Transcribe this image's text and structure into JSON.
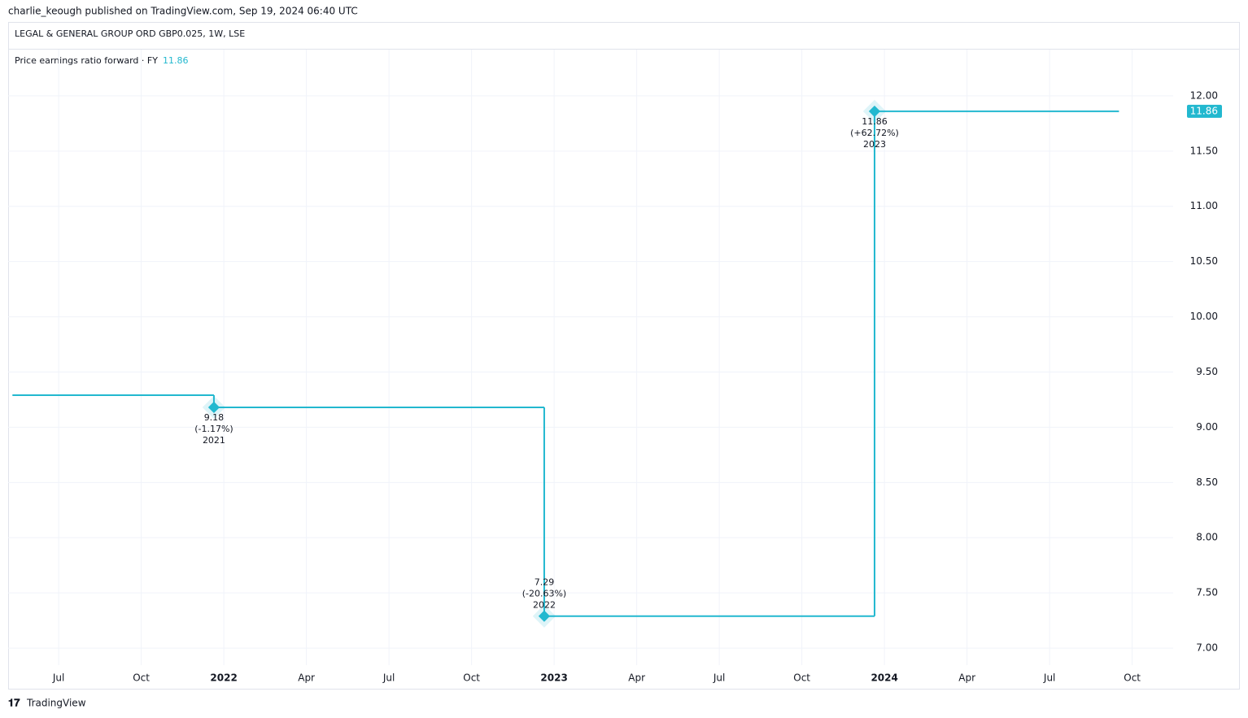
{
  "header": {
    "published": "charlie_keough published on TradingView.com, Sep 19, 2024 06:40 UTC",
    "brand": "TradingView"
  },
  "chart_data": {
    "type": "line",
    "title": "LEGAL & GENERAL GROUP ORD GBP0.025, 1W, LSE",
    "step": "post",
    "series": [
      {
        "name": "Price earnings ratio forward · FY",
        "color": "#22b8cf",
        "x": [
          2021.36,
          2021.97,
          2022.97,
          2023.97
        ],
        "values": [
          9.29,
          9.18,
          7.29,
          11.86
        ],
        "x_end": 2024.71
      }
    ],
    "legend_value": 11.86,
    "last_value": 11.86,
    "annotations": [
      {
        "x": 2021.97,
        "value": 9.18,
        "change": "(-1.17%)",
        "period": "2021",
        "position": "below"
      },
      {
        "x": 2022.97,
        "value": 7.29,
        "change": "(-20.63%)",
        "period": "2022",
        "position": "above"
      },
      {
        "x": 2023.97,
        "value": 11.86,
        "change": "(+62.72%)",
        "period": "2023",
        "position": "below"
      }
    ],
    "xlim": [
      2021.347,
      2024.874
    ],
    "xticks": [
      {
        "value": 2021.5,
        "label": "Jul"
      },
      {
        "value": 2021.75,
        "label": "Oct"
      },
      2022,
      {
        "value": 2022.25,
        "label": "Apr"
      },
      {
        "value": 2022.5,
        "label": "Jul"
      },
      {
        "value": 2022.75,
        "label": "Oct"
      },
      2023,
      {
        "value": 2023.25,
        "label": "Apr"
      },
      {
        "value": 2023.5,
        "label": "Jul"
      },
      {
        "value": 2023.75,
        "label": "Oct"
      },
      2024,
      {
        "value": 2024.25,
        "label": "Apr"
      },
      {
        "value": 2024.5,
        "label": "Jul"
      },
      {
        "value": 2024.75,
        "label": "Oct"
      }
    ],
    "ylim": [
      6.846,
      12.419
    ],
    "yticks": [
      {
        "value": 7,
        "label": "7.00"
      },
      {
        "value": 7.5,
        "label": "7.50"
      },
      {
        "value": 8,
        "label": "8.00"
      },
      {
        "value": 8.5,
        "label": "8.50"
      },
      {
        "value": 9,
        "label": "9.00"
      },
      {
        "value": 9.5,
        "label": "9.50"
      },
      {
        "value": 10,
        "label": "10.00"
      },
      {
        "value": 10.5,
        "label": "10.50"
      },
      {
        "value": 11,
        "label": "11.00"
      },
      {
        "value": 11.5,
        "label": "11.50"
      },
      {
        "value": 12,
        "label": "12.00"
      }
    ],
    "grid": true
  }
}
